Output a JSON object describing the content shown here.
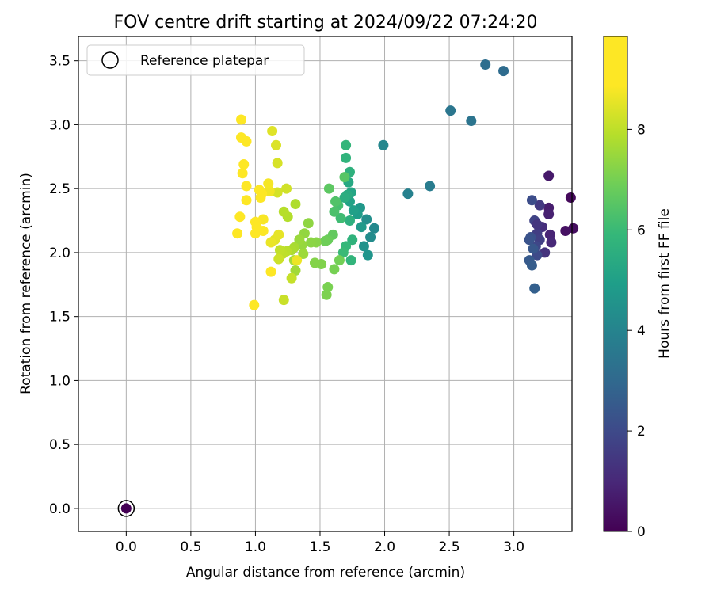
{
  "chart_data": {
    "type": "scatter",
    "title": "FOV centre drift starting at 2024/09/22 07:24:20",
    "xlabel": "Angular distance from reference (arcmin)",
    "ylabel": "Rotation from reference (arcmin)",
    "xlim": [
      -0.37,
      3.45
    ],
    "ylim": [
      -0.18,
      3.69
    ],
    "xticks": [
      0.0,
      0.5,
      1.0,
      1.5,
      2.0,
      2.5,
      3.0
    ],
    "xtick_labels": [
      "0.0",
      "0.5",
      "1.0",
      "1.5",
      "2.0",
      "2.5",
      "3.0"
    ],
    "yticks": [
      0.0,
      0.5,
      1.0,
      1.5,
      2.0,
      2.5,
      3.0,
      3.5
    ],
    "ytick_labels": [
      "0.0",
      "0.5",
      "1.0",
      "1.5",
      "2.0",
      "2.5",
      "3.0",
      "3.5"
    ],
    "grid": true,
    "legend": {
      "position": "top-left",
      "entries": [
        "Reference platepar"
      ]
    },
    "colorbar": {
      "label": "Hours from first FF file",
      "colormap": "viridis",
      "range": [
        0,
        9.85
      ],
      "ticks": [
        0,
        2,
        4,
        6,
        8
      ],
      "tick_labels": [
        "0",
        "2",
        "4",
        "6",
        "8"
      ]
    },
    "reference_point": {
      "x": 0.0,
      "y": 0.0,
      "c": 0.0
    },
    "points": [
      {
        "x": 3.44,
        "y": 2.43,
        "c": 0.2
      },
      {
        "x": 3.46,
        "y": 2.19,
        "c": 0.3
      },
      {
        "x": 3.4,
        "y": 2.17,
        "c": 0.4
      },
      {
        "x": 3.27,
        "y": 2.6,
        "c": 0.6
      },
      {
        "x": 3.27,
        "y": 2.35,
        "c": 0.7
      },
      {
        "x": 3.27,
        "y": 2.3,
        "c": 0.8
      },
      {
        "x": 3.28,
        "y": 2.14,
        "c": 0.9
      },
      {
        "x": 3.29,
        "y": 2.08,
        "c": 1.0
      },
      {
        "x": 3.22,
        "y": 2.2,
        "c": 1.2
      },
      {
        "x": 3.24,
        "y": 2.0,
        "c": 1.3
      },
      {
        "x": 3.2,
        "y": 2.37,
        "c": 1.5
      },
      {
        "x": 3.18,
        "y": 2.15,
        "c": 1.6
      },
      {
        "x": 3.2,
        "y": 2.1,
        "c": 1.7
      },
      {
        "x": 3.16,
        "y": 2.25,
        "c": 1.8
      },
      {
        "x": 3.17,
        "y": 2.05,
        "c": 1.9
      },
      {
        "x": 3.18,
        "y": 1.98,
        "c": 2.0
      },
      {
        "x": 3.14,
        "y": 2.41,
        "c": 2.1
      },
      {
        "x": 3.13,
        "y": 2.12,
        "c": 2.2
      },
      {
        "x": 3.12,
        "y": 2.1,
        "c": 2.3
      },
      {
        "x": 3.15,
        "y": 2.03,
        "c": 2.4
      },
      {
        "x": 3.12,
        "y": 1.94,
        "c": 2.5
      },
      {
        "x": 3.14,
        "y": 1.9,
        "c": 2.6
      },
      {
        "x": 3.16,
        "y": 1.72,
        "c": 2.7
      },
      {
        "x": 3.18,
        "y": 2.22,
        "c": 1.4
      },
      {
        "x": 2.92,
        "y": 3.42,
        "c": 3.1
      },
      {
        "x": 2.78,
        "y": 3.47,
        "c": 3.2
      },
      {
        "x": 2.67,
        "y": 3.03,
        "c": 3.4
      },
      {
        "x": 2.51,
        "y": 3.11,
        "c": 3.5
      },
      {
        "x": 2.35,
        "y": 2.52,
        "c": 3.7
      },
      {
        "x": 2.18,
        "y": 2.46,
        "c": 3.9
      },
      {
        "x": 1.99,
        "y": 2.84,
        "c": 4.1
      },
      {
        "x": 1.92,
        "y": 2.19,
        "c": 4.2
      },
      {
        "x": 1.89,
        "y": 2.12,
        "c": 4.3
      },
      {
        "x": 1.86,
        "y": 2.26,
        "c": 4.4
      },
      {
        "x": 1.84,
        "y": 2.05,
        "c": 4.5
      },
      {
        "x": 1.87,
        "y": 1.98,
        "c": 4.6
      },
      {
        "x": 1.81,
        "y": 2.35,
        "c": 4.7
      },
      {
        "x": 1.82,
        "y": 2.2,
        "c": 4.8
      },
      {
        "x": 1.79,
        "y": 2.3,
        "c": 4.9
      },
      {
        "x": 1.76,
        "y": 2.33,
        "c": 5.0
      },
      {
        "x": 1.73,
        "y": 2.4,
        "c": 5.1
      },
      {
        "x": 1.74,
        "y": 2.47,
        "c": 5.2
      },
      {
        "x": 1.72,
        "y": 2.55,
        "c": 5.3
      },
      {
        "x": 1.71,
        "y": 2.45,
        "c": 5.4
      },
      {
        "x": 1.69,
        "y": 2.43,
        "c": 5.5
      },
      {
        "x": 1.73,
        "y": 2.25,
        "c": 5.6
      },
      {
        "x": 1.75,
        "y": 2.1,
        "c": 5.7
      },
      {
        "x": 1.74,
        "y": 1.94,
        "c": 5.8
      },
      {
        "x": 1.7,
        "y": 2.05,
        "c": 5.9
      },
      {
        "x": 1.68,
        "y": 2.0,
        "c": 6.0
      },
      {
        "x": 1.66,
        "y": 2.27,
        "c": 6.1
      },
      {
        "x": 1.64,
        "y": 2.37,
        "c": 6.2
      },
      {
        "x": 1.61,
        "y": 2.32,
        "c": 6.3
      },
      {
        "x": 1.62,
        "y": 2.4,
        "c": 6.4
      },
      {
        "x": 1.73,
        "y": 2.63,
        "c": 5.65
      },
      {
        "x": 1.7,
        "y": 2.74,
        "c": 5.75
      },
      {
        "x": 1.7,
        "y": 2.84,
        "c": 5.85
      },
      {
        "x": 1.69,
        "y": 2.59,
        "c": 6.5
      },
      {
        "x": 1.57,
        "y": 2.5,
        "c": 6.6
      },
      {
        "x": 1.6,
        "y": 2.14,
        "c": 6.7
      },
      {
        "x": 1.56,
        "y": 2.1,
        "c": 6.8
      },
      {
        "x": 1.54,
        "y": 2.09,
        "c": 6.9
      },
      {
        "x": 1.65,
        "y": 1.94,
        "c": 6.95
      },
      {
        "x": 1.61,
        "y": 1.87,
        "c": 7.0
      },
      {
        "x": 1.56,
        "y": 1.73,
        "c": 7.05
      },
      {
        "x": 1.55,
        "y": 1.67,
        "c": 7.1
      },
      {
        "x": 1.51,
        "y": 1.91,
        "c": 7.15
      },
      {
        "x": 1.46,
        "y": 1.92,
        "c": 7.2
      },
      {
        "x": 1.47,
        "y": 2.08,
        "c": 7.25
      },
      {
        "x": 1.43,
        "y": 2.08,
        "c": 7.3
      },
      {
        "x": 1.41,
        "y": 2.23,
        "c": 7.35
      },
      {
        "x": 1.38,
        "y": 2.15,
        "c": 7.4
      },
      {
        "x": 1.36,
        "y": 2.06,
        "c": 7.45
      },
      {
        "x": 1.34,
        "y": 2.1,
        "c": 7.5
      },
      {
        "x": 1.37,
        "y": 1.99,
        "c": 7.55
      },
      {
        "x": 1.31,
        "y": 1.86,
        "c": 7.6
      },
      {
        "x": 1.3,
        "y": 1.94,
        "c": 7.65
      },
      {
        "x": 1.3,
        "y": 2.04,
        "c": 7.7
      },
      {
        "x": 1.28,
        "y": 2.02,
        "c": 7.75
      },
      {
        "x": 1.31,
        "y": 2.38,
        "c": 7.8
      },
      {
        "x": 1.25,
        "y": 2.28,
        "c": 7.85
      },
      {
        "x": 1.22,
        "y": 2.32,
        "c": 7.9
      },
      {
        "x": 1.24,
        "y": 2.01,
        "c": 7.95
      },
      {
        "x": 1.21,
        "y": 1.99,
        "c": 8.0
      },
      {
        "x": 1.19,
        "y": 2.02,
        "c": 8.05
      },
      {
        "x": 1.28,
        "y": 1.8,
        "c": 8.1
      },
      {
        "x": 1.22,
        "y": 1.63,
        "c": 8.15
      },
      {
        "x": 1.18,
        "y": 1.95,
        "c": 8.2
      },
      {
        "x": 1.24,
        "y": 2.5,
        "c": 8.25
      },
      {
        "x": 1.17,
        "y": 2.47,
        "c": 8.3
      },
      {
        "x": 1.17,
        "y": 2.7,
        "c": 8.35
      },
      {
        "x": 1.16,
        "y": 2.84,
        "c": 8.4
      },
      {
        "x": 1.13,
        "y": 2.95,
        "c": 8.45
      },
      {
        "x": 1.15,
        "y": 2.1,
        "c": 8.5
      },
      {
        "x": 1.18,
        "y": 2.14,
        "c": 8.55
      },
      {
        "x": 1.12,
        "y": 2.08,
        "c": 8.6
      },
      {
        "x": 1.32,
        "y": 1.94,
        "c": 8.65
      },
      {
        "x": 1.11,
        "y": 2.48,
        "c": 8.7
      },
      {
        "x": 1.1,
        "y": 2.54,
        "c": 8.75
      },
      {
        "x": 1.06,
        "y": 2.26,
        "c": 8.8
      },
      {
        "x": 1.06,
        "y": 2.17,
        "c": 8.85
      },
      {
        "x": 1.04,
        "y": 2.43,
        "c": 8.9
      },
      {
        "x": 1.03,
        "y": 2.49,
        "c": 8.95
      },
      {
        "x": 1.05,
        "y": 2.46,
        "c": 9.0
      },
      {
        "x": 1.01,
        "y": 2.2,
        "c": 9.05
      },
      {
        "x": 1.0,
        "y": 2.15,
        "c": 9.1
      },
      {
        "x": 1.0,
        "y": 2.24,
        "c": 9.15
      },
      {
        "x": 1.12,
        "y": 1.85,
        "c": 9.2
      },
      {
        "x": 0.99,
        "y": 1.59,
        "c": 9.25
      },
      {
        "x": 0.93,
        "y": 2.41,
        "c": 9.3
      },
      {
        "x": 0.93,
        "y": 2.52,
        "c": 9.35
      },
      {
        "x": 0.91,
        "y": 2.69,
        "c": 9.4
      },
      {
        "x": 0.9,
        "y": 2.62,
        "c": 9.45
      },
      {
        "x": 0.89,
        "y": 2.9,
        "c": 9.5
      },
      {
        "x": 0.93,
        "y": 2.87,
        "c": 9.55
      },
      {
        "x": 0.89,
        "y": 3.04,
        "c": 9.6
      },
      {
        "x": 0.88,
        "y": 2.28,
        "c": 9.65
      },
      {
        "x": 0.86,
        "y": 2.15,
        "c": 9.7
      }
    ]
  }
}
